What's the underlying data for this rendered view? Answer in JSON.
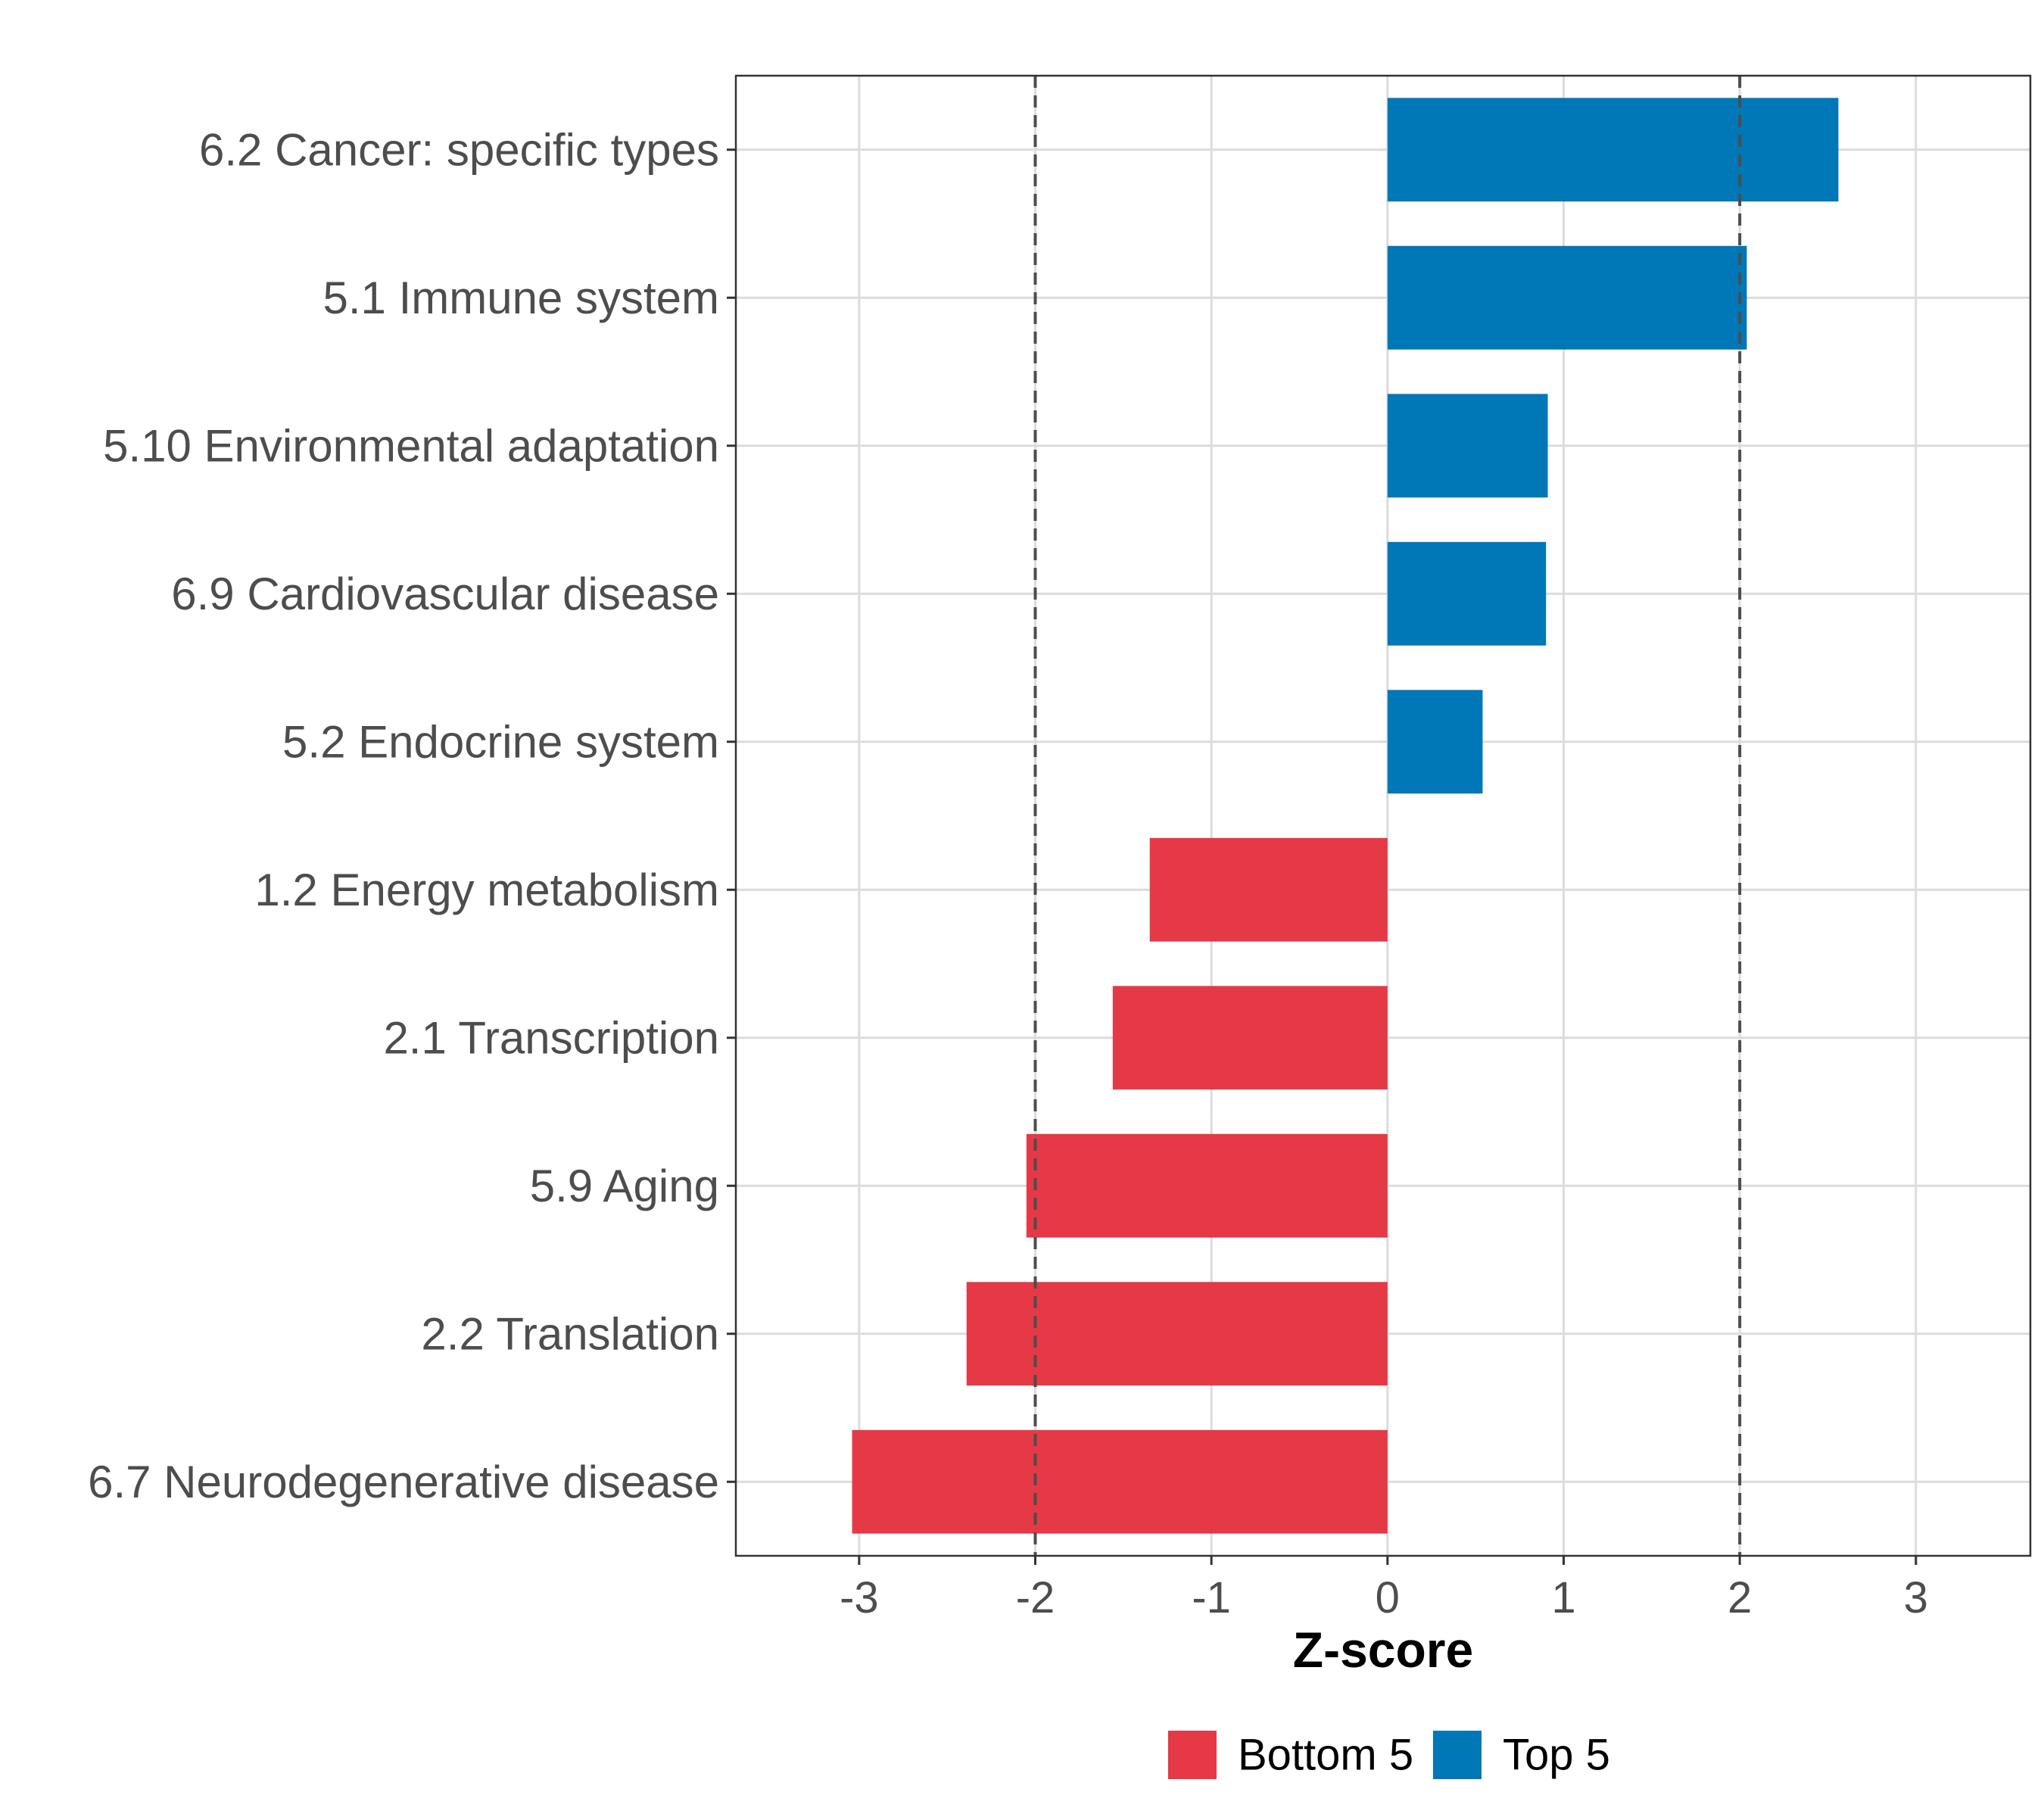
{
  "chart_data": {
    "type": "bar",
    "orientation": "horizontal",
    "title": "",
    "xlabel": "Z-score",
    "ylabel": "",
    "xlim": [
      -3.7,
      3.65
    ],
    "xticks": [
      -3,
      -2,
      -1,
      0,
      1,
      2,
      3
    ],
    "xtick_labels": [
      "-3",
      "-2",
      "-1",
      "0",
      "1",
      "2",
      "3"
    ],
    "reference_lines": [
      -2,
      2
    ],
    "grid": true,
    "legend_position": "bottom",
    "categories": [
      "6.2 Cancer: specific types",
      "5.1 Immune system",
      "5.10 Environmental adaptation",
      "6.9 Cardiovascular disease",
      "5.2 Endocrine system",
      "1.2 Energy metabolism",
      "2.1 Transcription",
      "5.9 Aging",
      "2.2 Translation",
      "6.7 Neurodegenerative disease"
    ],
    "values": [
      2.56,
      2.04,
      0.91,
      0.9,
      0.54,
      -1.35,
      -1.56,
      -2.05,
      -2.39,
      -3.04
    ],
    "groups": [
      "Top 5",
      "Top 5",
      "Top 5",
      "Top 5",
      "Top 5",
      "Bottom 5",
      "Bottom 5",
      "Bottom 5",
      "Bottom 5",
      "Bottom 5"
    ],
    "legend": [
      {
        "name": "Bottom 5",
        "color": "#e63946"
      },
      {
        "name": "Top 5",
        "color": "#0077b6"
      }
    ]
  }
}
